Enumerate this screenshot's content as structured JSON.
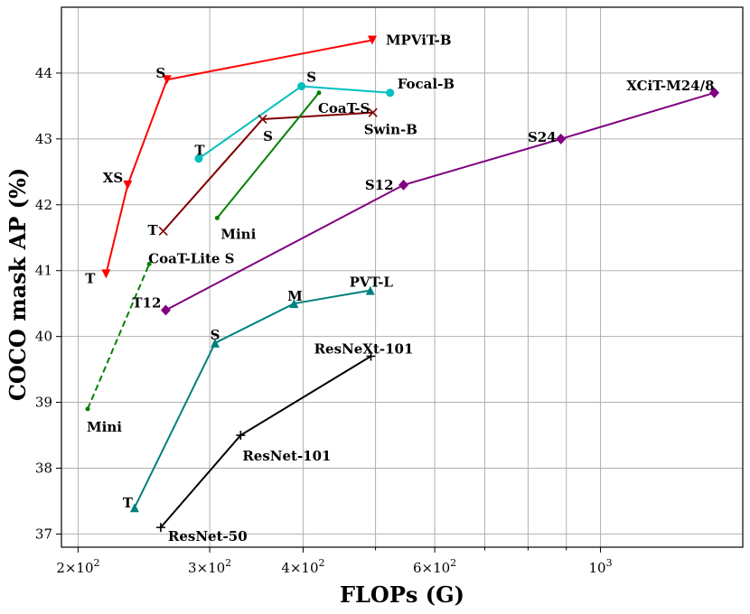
{
  "chart_data": {
    "type": "line",
    "xlabel": "FLOPs (G)",
    "ylabel": "COCO mask AP (%)",
    "xscale": "log",
    "xlim": [
      190,
      1550
    ],
    "ylim": [
      36.8,
      45.0
    ],
    "xticks": [
      {
        "value": 200,
        "base": "2×10",
        "exp": "2"
      },
      {
        "value": 300,
        "base": "3×10",
        "exp": "2"
      },
      {
        "value": 400,
        "base": "4×10",
        "exp": "2"
      },
      {
        "value": 600,
        "base": "6×10",
        "exp": "2"
      },
      {
        "value": 1000,
        "base": "10",
        "exp": "3"
      }
    ],
    "x_minor_grid": [
      500,
      700,
      800,
      900
    ],
    "yticks": [
      37,
      38,
      39,
      40,
      41,
      42,
      43,
      44
    ],
    "grid": true,
    "series": [
      {
        "name": "MPViT",
        "color": "#ff0000",
        "marker": "triangle-down",
        "dash": false,
        "points": [
          {
            "x": 218,
            "y": 40.95,
            "label": "T",
            "anchor": "end",
            "dx": -12,
            "dy": 5
          },
          {
            "x": 233,
            "y": 42.3,
            "label": "XS",
            "anchor": "end",
            "dx": -5,
            "dy": -8
          },
          {
            "x": 263,
            "y": 43.9,
            "label": "S",
            "anchor": "middle",
            "dx": -7,
            "dy": -7
          },
          {
            "x": 495,
            "y": 44.5,
            "label": "MPViT-B",
            "anchor": "start",
            "dx": 15,
            "dy": 0
          }
        ]
      },
      {
        "name": "Focal",
        "color": "#00bfbf",
        "marker": "circle",
        "dash": false,
        "points": [
          {
            "x": 290,
            "y": 42.7,
            "label": "T",
            "anchor": "middle",
            "dx": 1,
            "dy": -9
          },
          {
            "x": 398,
            "y": 43.8,
            "label": "S",
            "anchor": "middle",
            "dx": 11,
            "dy": -10
          },
          {
            "x": 523,
            "y": 43.7,
            "label": "Focal-B",
            "anchor": "start",
            "dx": 8,
            "dy": -10
          }
        ]
      },
      {
        "name": "Swin",
        "color": "#800000",
        "marker": "x",
        "dash": false,
        "points": [
          {
            "x": 260,
            "y": 41.6,
            "label": "T",
            "anchor": "end",
            "dx": -6,
            "dy": -1
          },
          {
            "x": 353,
            "y": 43.3,
            "label": "S",
            "anchor": "middle",
            "dx": 6,
            "dy": 19
          },
          {
            "x": 496,
            "y": 43.4,
            "label": "Swin-B",
            "anchor": "start",
            "dx": -10,
            "dy": 19
          }
        ]
      },
      {
        "name": "CoaT",
        "color": "#008000",
        "marker": "dot",
        "dash": false,
        "points": [
          {
            "x": 307,
            "y": 41.8,
            "label": "Mini",
            "anchor": "start",
            "dx": 4,
            "dy": 18
          },
          {
            "x": 420,
            "y": 43.7,
            "label": "CoaT-S",
            "anchor": "start",
            "dx": -1,
            "dy": 17
          }
        ]
      },
      {
        "name": "CoaT-Lite",
        "color": "#008000",
        "marker": "dot",
        "dash": true,
        "points": [
          {
            "x": 206,
            "y": 38.9,
            "label": "Mini",
            "anchor": "start",
            "dx": -1,
            "dy": 20
          },
          {
            "x": 249,
            "y": 41.1,
            "label": "CoaT-Lite S",
            "anchor": "start",
            "dx": -1,
            "dy": -6
          }
        ]
      },
      {
        "name": "XCiT",
        "color": "#800080",
        "marker": "diamond",
        "dash": false,
        "points": [
          {
            "x": 262,
            "y": 40.4,
            "label": "T12",
            "anchor": "end",
            "dx": -5,
            "dy": -8
          },
          {
            "x": 545,
            "y": 42.3,
            "label": "S12",
            "anchor": "end",
            "dx": -11,
            "dy": 0
          },
          {
            "x": 885,
            "y": 43.0,
            "label": "S24",
            "anchor": "end",
            "dx": -5,
            "dy": -2
          },
          {
            "x": 1420,
            "y": 43.7,
            "label": "XCiT-M24/8",
            "anchor": "end",
            "dx": 0,
            "dy": -8
          }
        ]
      },
      {
        "name": "PVT",
        "color": "#008080",
        "marker": "triangle-up",
        "dash": false,
        "points": [
          {
            "x": 238,
            "y": 37.4,
            "label": "T",
            "anchor": "end",
            "dx": -2,
            "dy": -5
          },
          {
            "x": 305,
            "y": 39.9,
            "label": "S",
            "anchor": "middle",
            "dx": 0,
            "dy": -9
          },
          {
            "x": 389,
            "y": 40.5,
            "label": "M",
            "anchor": "middle",
            "dx": 1,
            "dy": -8
          },
          {
            "x": 492,
            "y": 40.7,
            "label": "PVT-L",
            "anchor": "middle",
            "dx": 1,
            "dy": -9
          }
        ]
      },
      {
        "name": "ResNet",
        "color": "#000000",
        "marker": "plus",
        "dash": false,
        "points": [
          {
            "x": 258,
            "y": 37.1,
            "label": "ResNet-50",
            "anchor": "start",
            "dx": 8,
            "dy": 10
          },
          {
            "x": 330,
            "y": 38.5,
            "label": "ResNet-101",
            "anchor": "start",
            "dx": 2,
            "dy": 23
          },
          {
            "x": 493,
            "y": 39.7,
            "label": "ResNeXt-101",
            "anchor": "middle",
            "dx": -8,
            "dy": -8
          }
        ]
      }
    ]
  }
}
